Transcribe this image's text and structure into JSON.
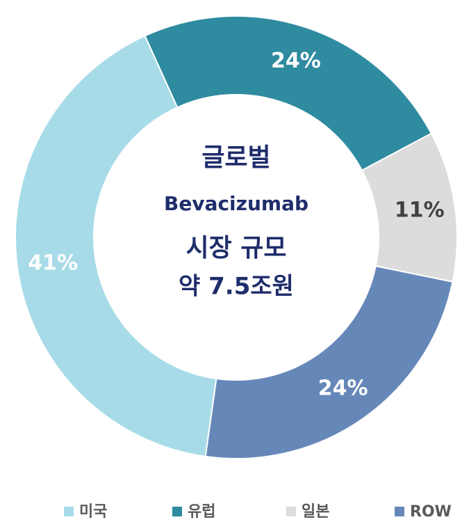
{
  "chart_data": {
    "type": "donut",
    "categories": [
      "미국",
      "유럽",
      "일본",
      "ROW"
    ],
    "values": [
      41,
      24,
      11,
      24
    ],
    "value_labels": [
      "41%",
      "24%",
      "11%",
      "24%"
    ],
    "colors": [
      "#a8dbe8",
      "#2e8ba0",
      "#dcdcdc",
      "#6688b9"
    ],
    "center_text": [
      "글로벌",
      "Bevacizumab",
      "시장 규모",
      "약 7.5조원"
    ],
    "legend": "bottom"
  }
}
